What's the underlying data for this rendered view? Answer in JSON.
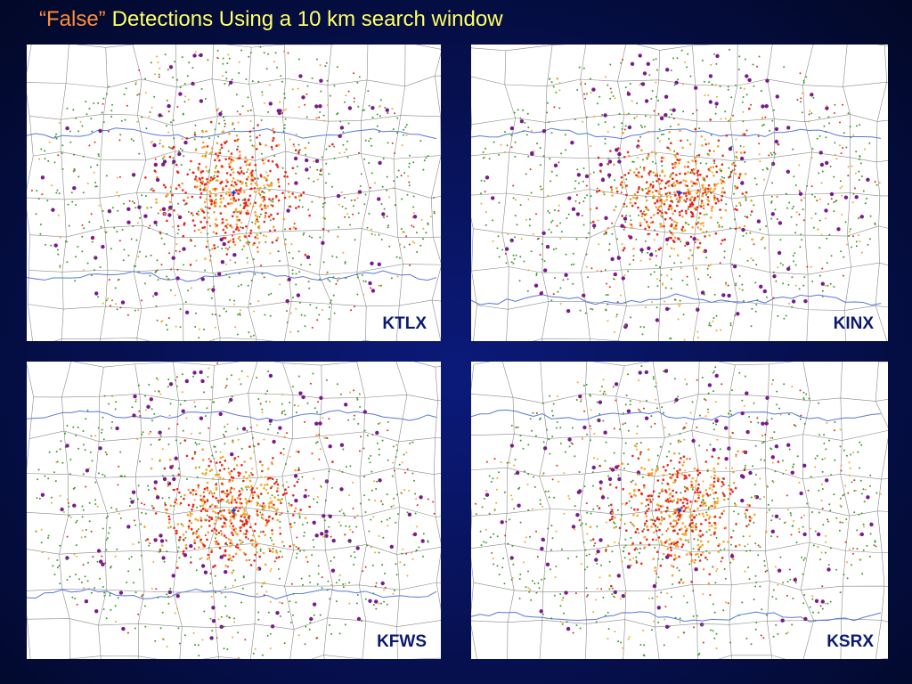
{
  "title": {
    "quoted": "“False”",
    "rest": "Detections Using a 10 km search window"
  },
  "panels": [
    {
      "label": "KTLX"
    },
    {
      "label": "KINX"
    },
    {
      "label": "KFWS"
    },
    {
      "label": "KSRX"
    }
  ]
}
